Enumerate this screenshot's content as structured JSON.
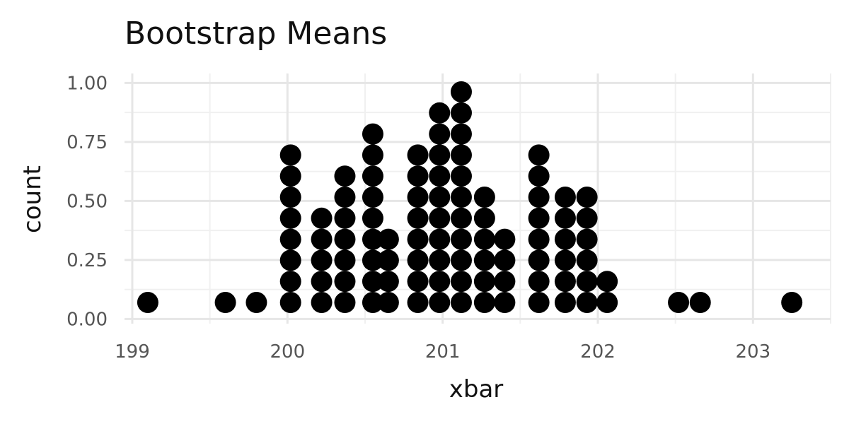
{
  "chart_data": {
    "type": "scatter",
    "subtype": "dotplot",
    "title": "Bootstrap Means",
    "xlabel": "xbar",
    "ylabel": "count",
    "xlim": [
      198.95,
      203.5
    ],
    "ylim": [
      -0.02,
      1.04
    ],
    "x_ticks": [
      199,
      200,
      201,
      202,
      203
    ],
    "y_ticks": [
      0.0,
      0.25,
      0.5,
      0.75,
      1.0
    ],
    "x_tick_labels": [
      "199",
      "200",
      "201",
      "202",
      "203"
    ],
    "y_tick_labels": [
      "0.00",
      "0.25",
      "0.50",
      "0.75",
      "1.00"
    ],
    "grid": true,
    "stacks": [
      {
        "x": 199.1,
        "count": 1
      },
      {
        "x": 199.6,
        "count": 1
      },
      {
        "x": 199.8,
        "count": 1
      },
      {
        "x": 200.02,
        "count": 8
      },
      {
        "x": 200.22,
        "count": 5
      },
      {
        "x": 200.37,
        "count": 7
      },
      {
        "x": 200.55,
        "count": 9
      },
      {
        "x": 200.65,
        "count": 4
      },
      {
        "x": 200.84,
        "count": 8
      },
      {
        "x": 200.98,
        "count": 10
      },
      {
        "x": 201.12,
        "count": 11
      },
      {
        "x": 201.27,
        "count": 6
      },
      {
        "x": 201.4,
        "count": 4
      },
      {
        "x": 201.62,
        "count": 8
      },
      {
        "x": 201.79,
        "count": 6
      },
      {
        "x": 201.93,
        "count": 6
      },
      {
        "x": 202.06,
        "count": 2
      },
      {
        "x": 202.52,
        "count": 1
      },
      {
        "x": 202.66,
        "count": 1
      },
      {
        "x": 203.25,
        "count": 1
      }
    ]
  }
}
